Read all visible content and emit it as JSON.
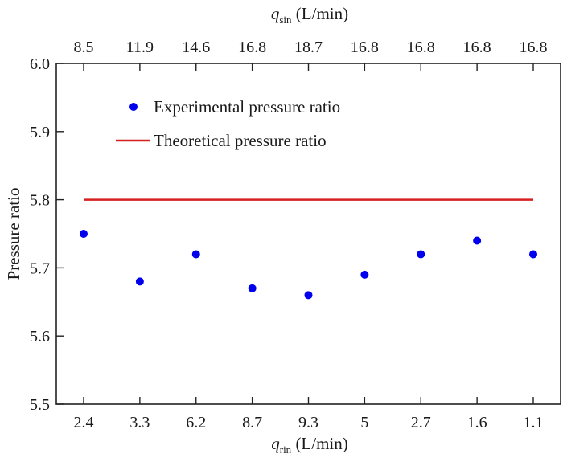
{
  "chart_data": {
    "type": "scatter",
    "title": "",
    "ylabel": "Pressure ratio",
    "xlabel_bottom": {
      "var": "q",
      "sub": "rin",
      "unit": " (L/min)"
    },
    "xlabel_top": {
      "var": "q",
      "sub": "sin",
      "unit": " (L/min)"
    },
    "ylim": [
      5.5,
      6.0
    ],
    "yticks": [
      "5.5",
      "5.6",
      "5.7",
      "5.8",
      "5.9",
      "6.0"
    ],
    "yticks_values": [
      5.5,
      5.6,
      5.7,
      5.8,
      5.9,
      6.0
    ],
    "categories_bottom": [
      "2.4",
      "3.3",
      "6.2",
      "8.7",
      "9.3",
      "5",
      "2.7",
      "1.6",
      "1.1"
    ],
    "categories_top": [
      "8.5",
      "11.9",
      "14.6",
      "16.8",
      "18.7",
      "16.8",
      "16.8",
      "16.8",
      "16.8"
    ],
    "grid": false,
    "legend_position": "top-left",
    "series": [
      {
        "name": "Experimental pressure ratio",
        "type": "scatter",
        "color": "#0000ee",
        "values": [
          5.75,
          5.68,
          5.72,
          5.67,
          5.66,
          5.69,
          5.72,
          5.74,
          5.72
        ]
      },
      {
        "name": "Theoretical pressure ratio",
        "type": "line",
        "color": "#d62020",
        "values": [
          5.8,
          5.8,
          5.8,
          5.8,
          5.8,
          5.8,
          5.8,
          5.8,
          5.8
        ]
      }
    ]
  }
}
